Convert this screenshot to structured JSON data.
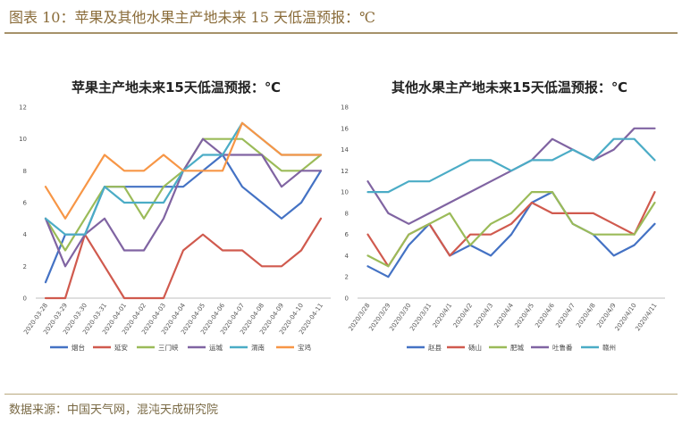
{
  "figure": {
    "title": "图表 10：苹果及其他水果主产地未来 15 天低温预报：℃",
    "source": "数据来源：中国天气网，混沌天成研究院"
  },
  "chart_data": [
    {
      "type": "line",
      "title": "苹果主产地未来15天低温预报：℃",
      "xlabel": "",
      "ylabel": "",
      "ylim": [
        0,
        12
      ],
      "yticks": [
        0,
        2,
        4,
        6,
        8,
        10,
        12
      ],
      "grid": false,
      "legend": "bottom",
      "categories": [
        "2020-03-28",
        "2020-03-29",
        "2020-03-30",
        "2020-03-31",
        "2020-04-01",
        "2020-04-02",
        "2020-04-03",
        "2020-04-04",
        "2020-04-05",
        "2020-04-06",
        "2020-04-07",
        "2020-04-08",
        "2020-04-09",
        "2020-04-10",
        "2020-04-11"
      ],
      "series": [
        {
          "name": "烟台",
          "color": "#4472C4",
          "values": [
            1,
            4,
            4,
            7,
            7,
            7,
            7,
            7,
            8,
            9,
            7,
            6,
            5,
            6,
            8
          ]
        },
        {
          "name": "延安",
          "color": "#D05A4E",
          "values": [
            0,
            0,
            4,
            2,
            0,
            0,
            0,
            3,
            4,
            3,
            3,
            2,
            2,
            3,
            5
          ]
        },
        {
          "name": "三门峡",
          "color": "#9BBB59",
          "values": [
            5,
            3,
            5,
            7,
            7,
            5,
            7,
            8,
            10,
            10,
            10,
            9,
            8,
            8,
            9
          ]
        },
        {
          "name": "运城",
          "color": "#8064A2",
          "values": [
            5,
            2,
            4,
            5,
            3,
            3,
            5,
            8,
            10,
            9,
            9,
            9,
            7,
            8,
            8
          ]
        },
        {
          "name": "渭南",
          "color": "#4BACC6",
          "values": [
            5,
            4,
            4,
            7,
            6,
            6,
            6,
            8,
            9,
            9,
            11,
            10,
            9,
            9,
            9
          ]
        },
        {
          "name": "宝鸡",
          "color": "#F79646",
          "values": [
            7,
            5,
            7,
            9,
            8,
            8,
            9,
            8,
            8,
            8,
            11,
            10,
            9,
            9,
            9
          ]
        }
      ]
    },
    {
      "type": "line",
      "title": "其他水果主产地未来15天低温预报：℃",
      "xlabel": "",
      "ylabel": "",
      "ylim": [
        0,
        18
      ],
      "yticks": [
        0,
        2,
        4,
        6,
        8,
        10,
        12,
        14,
        16,
        18
      ],
      "grid": false,
      "legend": "bottom",
      "categories": [
        "2020/3/28",
        "2020/3/29",
        "2020/3/30",
        "2020/3/31",
        "2020/4/1",
        "2020/4/2",
        "2020/4/3",
        "2020/4/4",
        "2020/4/5",
        "2020/4/6",
        "2020/4/7",
        "2020/4/8",
        "2020/4/9",
        "2020/4/10",
        "2020/4/11"
      ],
      "series": [
        {
          "name": "赵县",
          "color": "#4472C4",
          "values": [
            3,
            2,
            5,
            7,
            4,
            5,
            4,
            6,
            9,
            10,
            7,
            6,
            4,
            5,
            7
          ]
        },
        {
          "name": "砀山",
          "color": "#D05A4E",
          "values": [
            6,
            3,
            6,
            7,
            4,
            6,
            6,
            7,
            9,
            8,
            8,
            8,
            7,
            6,
            10
          ]
        },
        {
          "name": "肥城",
          "color": "#9BBB59",
          "values": [
            4,
            3,
            6,
            7,
            8,
            5,
            7,
            8,
            10,
            10,
            7,
            6,
            6,
            6,
            9
          ]
        },
        {
          "name": "吐鲁番",
          "color": "#8064A2",
          "values": [
            11,
            8,
            7,
            8,
            9,
            10,
            11,
            12,
            13,
            15,
            14,
            13,
            14,
            16,
            16
          ]
        },
        {
          "name": "赣州",
          "color": "#4BACC6",
          "values": [
            10,
            10,
            11,
            11,
            12,
            13,
            13,
            12,
            13,
            13,
            14,
            13,
            15,
            15,
            13
          ]
        }
      ]
    }
  ]
}
